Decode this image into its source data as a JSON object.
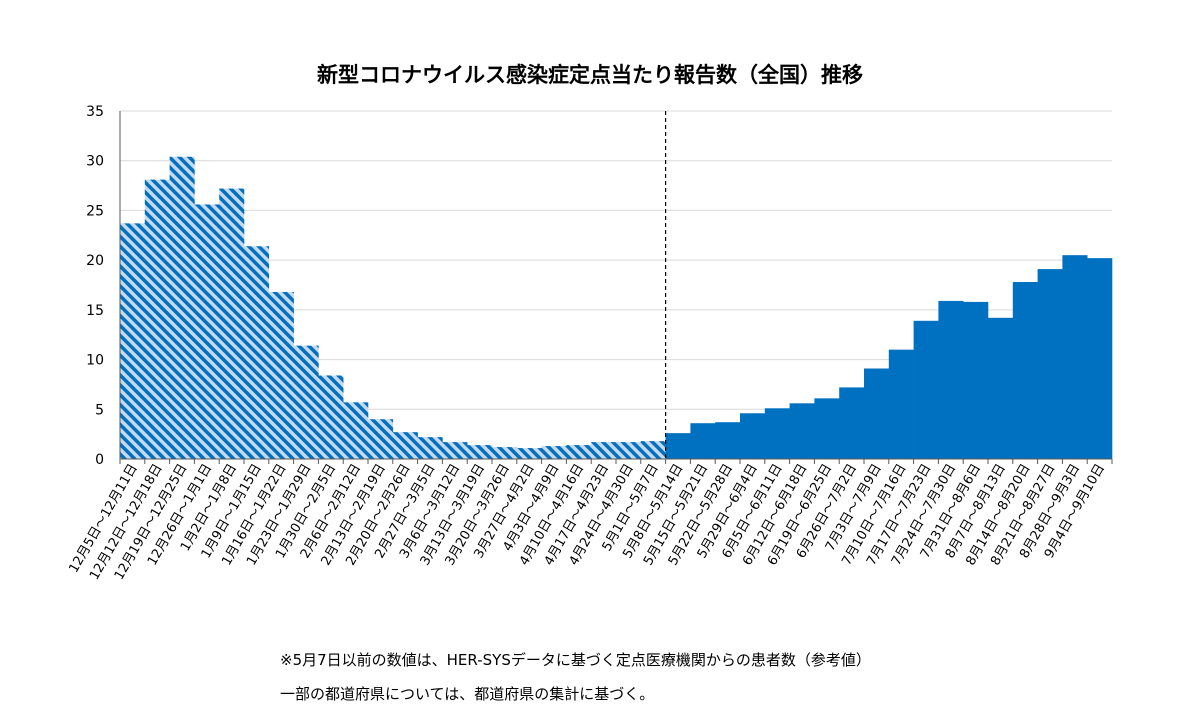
{
  "notes": [
    "※5月7日以前の数値は、HER-SYSデータに基づく定点医療機関からの患者数（参考値）",
    "一部の都道府県については、都道府県の集計に基づく。"
  ],
  "colors": {
    "bar": "#0070c0",
    "hatch_light": "#c7d9ec",
    "grid": "#d9d9d9",
    "axis": "#595959",
    "text": "#000000"
  },
  "chart_data": {
    "type": "bar",
    "title": "新型コロナウイルス感染症定点当たり報告数（全国）推移",
    "xlabel": "",
    "ylabel": "",
    "ylim": [
      0,
      35
    ],
    "yticks": [
      0,
      5,
      10,
      15,
      20,
      25,
      30,
      35
    ],
    "grid": true,
    "divider_after_index": 21,
    "categories": [
      "12月5日～12月11日",
      "12月12日～12月18日",
      "12月19日～12月25日",
      "12月26日～1月1日",
      "1月2日～1月8日",
      "1月9日～1月15日",
      "1月16日～1月22日",
      "1月23日～1月29日",
      "1月30日～2月5日",
      "2月6日～2月12日",
      "2月13日～2月19日",
      "2月20日～2月26日",
      "2月27日～3月5日",
      "3月6日～3月12日",
      "3月13日～3月19日",
      "3月20日～3月26日",
      "3月27日～4月2日",
      "4月3日～4月9日",
      "4月10日～4月16日",
      "4月17日～4月23日",
      "4月24日～4月30日",
      "5月1日～5月7日",
      "5月8日～5月14日",
      "5月15日～5月21日",
      "5月22日～5月28日",
      "5月29日～6月4日",
      "6月5日～6月11日",
      "6月12日～6月18日",
      "6月19日～6月25日",
      "6月26日～7月2日",
      "7月3日～7月9日",
      "7月10日～7月16日",
      "7月17日～7月23日",
      "7月24日～7月30日",
      "7月31日～8月6日",
      "8月7日～8月13日",
      "8月14日～8月20日",
      "8月21日～8月27日",
      "8月28日～9月3日",
      "9月4日～9月10日"
    ],
    "series": [
      {
        "name": "定点当たり報告数",
        "values": [
          23.7,
          28.1,
          30.4,
          25.6,
          27.2,
          21.4,
          16.8,
          11.4,
          8.4,
          5.7,
          4.0,
          2.7,
          2.2,
          1.7,
          1.4,
          1.2,
          1.1,
          1.3,
          1.4,
          1.7,
          1.7,
          1.8,
          2.6,
          3.6,
          3.7,
          4.6,
          5.1,
          5.6,
          6.1,
          7.2,
          9.1,
          11.0,
          13.9,
          15.9,
          15.8,
          14.2,
          17.8,
          19.1,
          20.5,
          20.2
        ]
      }
    ]
  }
}
